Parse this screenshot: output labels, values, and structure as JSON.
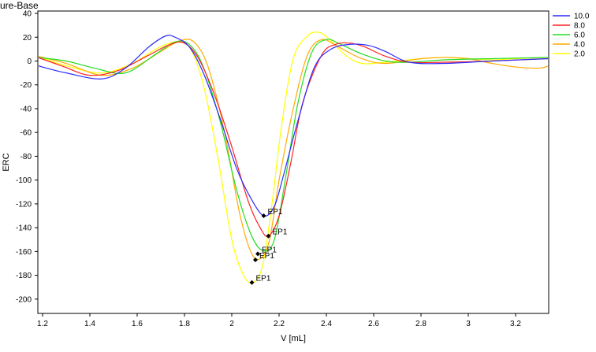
{
  "chart_data": {
    "type": "line",
    "title": "ure-Base",
    "xlabel": "V [mL]",
    "ylabel": "ERC",
    "xlim": [
      1.18,
      3.34
    ],
    "ylim": [
      -212,
      42
    ],
    "x_ticks": [
      1.2,
      1.4,
      1.6,
      1.8,
      2,
      2.2,
      2.4,
      2.6,
      2.8,
      3,
      3.2
    ],
    "x_tick_labels": [
      "1.2",
      "1.4",
      "1.6",
      "1.8",
      "2",
      "2.2",
      "2.4",
      "2.6",
      "2.8",
      "3",
      "3.2"
    ],
    "y_ticks": [
      40,
      20,
      0,
      -20,
      -40,
      -60,
      -80,
      -100,
      -120,
      -140,
      -160,
      -180,
      -200
    ],
    "y_tick_labels": [
      "40",
      "20",
      "0",
      "-20",
      "-40",
      "-60",
      "-80",
      "-100",
      "-120",
      "-140",
      "-160",
      "-180",
      "-200"
    ],
    "legend_position": "right",
    "series": [
      {
        "name": "10.0",
        "color": "#2b2bff",
        "x": [
          1.18,
          1.3,
          1.45,
          1.55,
          1.65,
          1.72,
          1.76,
          1.82,
          1.88,
          1.95,
          2.02,
          2.08,
          2.135,
          2.18,
          2.22,
          2.28,
          2.35,
          2.42,
          2.5,
          2.58,
          2.65,
          2.75,
          2.9,
          3.1,
          3.34
        ],
        "y": [
          -4,
          -10,
          -15,
          -6,
          12,
          21,
          20,
          12,
          -10,
          -48,
          -90,
          -115,
          -130,
          -122,
          -95,
          -50,
          -5,
          10,
          14,
          13,
          8,
          -1,
          -2,
          0,
          2
        ],
        "ep": {
          "x": 2.135,
          "y": -130,
          "label": "EP1"
        }
      },
      {
        "name": "8.0",
        "color": "#ff2020",
        "x": [
          1.18,
          1.28,
          1.4,
          1.52,
          1.64,
          1.74,
          1.8,
          1.86,
          1.93,
          2.0,
          2.07,
          2.12,
          2.155,
          2.2,
          2.25,
          2.3,
          2.38,
          2.44,
          2.5,
          2.56,
          2.65,
          2.75,
          2.9,
          3.1,
          3.34
        ],
        "y": [
          3,
          -4,
          -12,
          -8,
          4,
          14,
          15,
          2,
          -30,
          -72,
          -118,
          -140,
          -147,
          -130,
          -85,
          -35,
          5,
          14,
          15,
          12,
          4,
          -1,
          -1,
          0,
          2
        ],
        "ep": {
          "x": 2.155,
          "y": -147,
          "label": "EP1"
        }
      },
      {
        "name": "6.0",
        "color": "#22dd22",
        "x": [
          1.18,
          1.3,
          1.42,
          1.55,
          1.68,
          1.76,
          1.82,
          1.88,
          1.95,
          2.02,
          2.08,
          2.13,
          2.18,
          2.23,
          2.28,
          2.34,
          2.4,
          2.45,
          2.55,
          2.65,
          2.75,
          2.9,
          3.1,
          3.34
        ],
        "y": [
          3,
          0,
          -6,
          -10,
          6,
          16,
          14,
          -5,
          -50,
          -108,
          -145,
          -159,
          -150,
          -95,
          -35,
          8,
          18,
          15,
          6,
          0,
          -1,
          1,
          2,
          3
        ],
        "ep": {
          "x": 2.11,
          "y": -162,
          "label": "EP1"
        }
      },
      {
        "name": "4.0",
        "color": "#ffaa00",
        "x": [
          1.18,
          1.3,
          1.45,
          1.58,
          1.7,
          1.78,
          1.84,
          1.9,
          1.97,
          2.03,
          2.08,
          2.12,
          2.16,
          2.2,
          2.26,
          2.32,
          2.38,
          2.45,
          2.55,
          2.65,
          2.8,
          2.9,
          3.0,
          3.1,
          3.2,
          3.3,
          3.34
        ],
        "y": [
          4,
          -2,
          -12,
          -6,
          8,
          17,
          16,
          -5,
          -60,
          -125,
          -160,
          -166,
          -150,
          -100,
          -40,
          5,
          18,
          12,
          2,
          -2,
          2,
          3,
          2,
          -2,
          -5,
          -6,
          -4
        ],
        "ep": {
          "x": 2.1,
          "y": -167,
          "label": "EP1"
        }
      },
      {
        "name": "2.0",
        "color": "#ffff00",
        "x": [
          1.18,
          1.3,
          1.45,
          1.58,
          1.68,
          1.76,
          1.82,
          1.88,
          1.94,
          2.0,
          2.05,
          2.09,
          2.13,
          2.17,
          2.21,
          2.26,
          2.32,
          2.37,
          2.42,
          2.48,
          2.55,
          2.65,
          2.8,
          2.9,
          3.0,
          3.1,
          3.2,
          3.34
        ],
        "y": [
          4,
          -4,
          -10,
          -2,
          10,
          16,
          12,
          -20,
          -80,
          -150,
          -180,
          -186,
          -172,
          -120,
          -55,
          2,
          21,
          24,
          17,
          5,
          -2,
          -1,
          2,
          3,
          2,
          1,
          2,
          3
        ],
        "ep": {
          "x": 2.085,
          "y": -186,
          "label": "EP1"
        }
      }
    ]
  }
}
